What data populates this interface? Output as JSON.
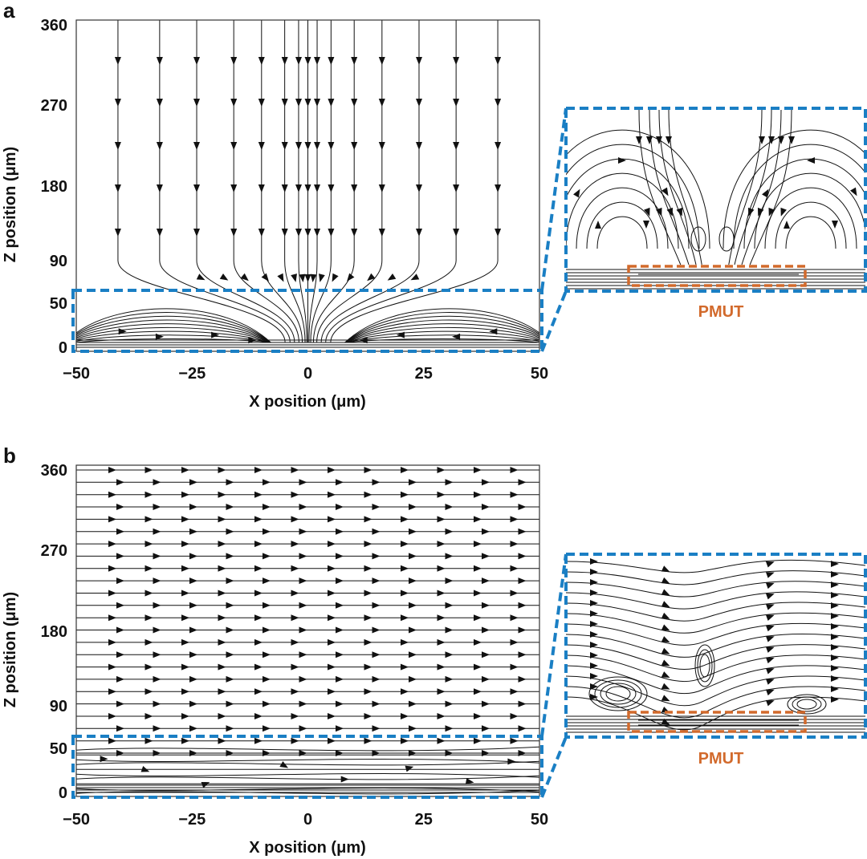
{
  "colors": {
    "zoom_box": "#1a7fc4",
    "pmut": "#d26a2c",
    "stream": "#111111",
    "frame": "#333333"
  },
  "chart_data": [
    {
      "panel": "a",
      "type": "streamline",
      "xlabel": "X position (μm)",
      "ylabel": "Z position (μm)",
      "xlim": [
        -50,
        50
      ],
      "ylim": [
        0,
        360
      ],
      "xticks": [
        "−50",
        "−25",
        "0",
        "25",
        "50"
      ],
      "xtick_values": [
        -50,
        -25,
        0,
        25,
        50
      ],
      "yticks": [
        "0",
        "50",
        "90",
        "180",
        "270",
        "360"
      ],
      "ytick_values": [
        0,
        50,
        90,
        180,
        270,
        360
      ],
      "highlight_tick": "50",
      "zoom_region": {
        "x": [
          -50,
          50
        ],
        "z": [
          0,
          50
        ]
      },
      "inset_label": "PMUT",
      "flow": "downward converging toward center"
    },
    {
      "panel": "b",
      "type": "streamline",
      "xlabel": "X position (μm)",
      "ylabel": "Z position (μm)",
      "xlim": [
        -50,
        50
      ],
      "ylim": [
        0,
        360
      ],
      "xticks": [
        "−50",
        "−25",
        "0",
        "25",
        "50"
      ],
      "xtick_values": [
        -50,
        -25,
        0,
        25,
        50
      ],
      "yticks": [
        "0",
        "50",
        "90",
        "180",
        "270",
        "360"
      ],
      "ytick_values": [
        0,
        50,
        90,
        180,
        270,
        360
      ],
      "highlight_tick": "50",
      "zoom_region": {
        "x": [
          -50,
          50
        ],
        "z": [
          0,
          50
        ]
      },
      "inset_label": "PMUT",
      "flow": "uniform rightward"
    }
  ]
}
